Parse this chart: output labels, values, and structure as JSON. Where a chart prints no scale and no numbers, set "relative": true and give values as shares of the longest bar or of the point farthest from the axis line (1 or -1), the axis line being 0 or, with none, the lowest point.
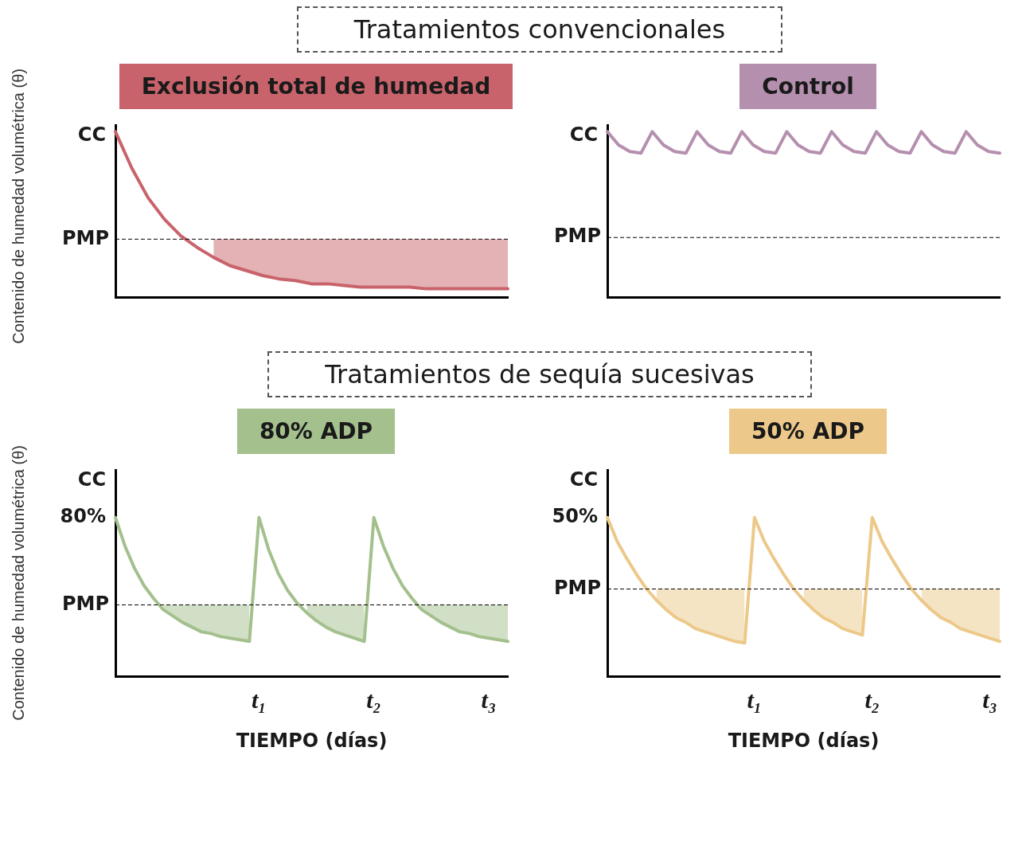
{
  "chart_data": [
    {
      "type": "line",
      "subtitle": "Tratamientos convencionales",
      "title": "Exclusión total de humedad",
      "ylabel": "Contenido de humedad volumétrica (θ)",
      "relative": true,
      "categories": [
        null,
        null,
        null,
        null,
        null,
        null,
        null,
        null,
        null,
        null,
        null,
        null,
        null,
        null,
        null,
        null,
        null,
        null,
        null,
        null,
        null,
        null,
        null,
        null,
        null
      ],
      "series": [
        {
          "color": "#c9636b",
          "values": [
            1.0,
            0.78,
            0.6,
            0.47,
            0.37,
            0.3,
            0.24,
            0.19,
            0.16,
            0.13,
            0.11,
            0.1,
            0.08,
            0.08,
            0.07,
            0.06,
            0.06,
            0.06,
            0.06,
            0.05,
            0.05,
            0.05,
            0.05,
            0.05,
            0.05
          ],
          "lower": [
            null,
            null,
            null,
            null,
            null,
            null,
            0.24,
            0.19,
            0.16,
            0.13,
            0.11,
            0.1,
            0.08,
            0.08,
            0.07,
            0.06,
            0.06,
            0.06,
            0.06,
            0.05,
            0.05,
            0.05,
            0.05,
            0.05,
            0.05
          ],
          "upper": [
            null,
            null,
            null,
            null,
            null,
            null,
            0.35,
            0.35,
            0.35,
            0.35,
            0.35,
            0.35,
            0.35,
            0.35,
            0.35,
            0.35,
            0.35,
            0.35,
            0.35,
            0.35,
            0.35,
            0.35,
            0.35,
            0.35,
            0.35
          ]
        }
      ],
      "ref_lines": [
        {
          "axis": "y",
          "value": 0.35,
          "label": "PMP",
          "line_style": "dashed"
        }
      ],
      "annotations": [
        "CC"
      ]
    },
    {
      "type": "line",
      "title": "Control",
      "relative": true,
      "categories": [
        null,
        null,
        null,
        null,
        null,
        null,
        null,
        null,
        null,
        null,
        null,
        null,
        null,
        null,
        null,
        null,
        null,
        null,
        null,
        null,
        null,
        null,
        null,
        null,
        null,
        null,
        null,
        null,
        null,
        null,
        null,
        null,
        null,
        null,
        null,
        null
      ],
      "series": [
        {
          "color": "#b58fae",
          "values": [
            1.0,
            0.92,
            0.88,
            0.87,
            1.0,
            0.92,
            0.88,
            0.87,
            1.0,
            0.92,
            0.88,
            0.87,
            1.0,
            0.92,
            0.88,
            0.87,
            1.0,
            0.92,
            0.88,
            0.87,
            1.0,
            0.92,
            0.88,
            0.87,
            1.0,
            0.92,
            0.88,
            0.87,
            1.0,
            0.92,
            0.88,
            0.87,
            1.0,
            0.92,
            0.88,
            0.87
          ]
        }
      ],
      "ref_lines": [
        {
          "axis": "y",
          "value": 0.36,
          "label": "PMP",
          "line_style": "dashed"
        }
      ],
      "annotations": [
        "CC"
      ]
    },
    {
      "type": "line",
      "subtitle": "Tratamientos de sequía sucesivas",
      "title": "80% ADP",
      "ylabel": "Contenido de humedad volumétrica (θ)",
      "xlabel": "TIEMPO (días)",
      "relative": true,
      "categories": [
        null,
        null,
        null,
        null,
        null,
        null,
        null,
        null,
        null,
        null,
        null,
        null,
        null,
        null,
        null,
        "t₁",
        null,
        null,
        null,
        null,
        null,
        null,
        null,
        null,
        null,
        null,
        null,
        "t₂",
        null,
        null,
        null,
        null,
        null,
        null,
        null,
        null,
        null,
        null,
        null,
        "t₃",
        null,
        null
      ],
      "series": [
        {
          "color": "#a3c08d",
          "values": [
            1.0,
            0.82,
            0.68,
            0.57,
            0.49,
            0.42,
            0.38,
            0.34,
            0.31,
            0.28,
            0.27,
            0.25,
            0.24,
            0.23,
            0.22,
            1.0,
            0.8,
            0.65,
            0.54,
            0.46,
            0.4,
            0.35,
            0.31,
            0.28,
            0.26,
            0.24,
            0.22,
            1.0,
            0.82,
            0.68,
            0.57,
            0.49,
            0.42,
            0.38,
            0.34,
            0.31,
            0.28,
            0.27,
            0.25,
            0.24,
            0.23,
            0.22
          ],
          "lower": [
            null,
            null,
            null,
            null,
            null,
            0.42,
            0.38,
            0.34,
            0.31,
            0.28,
            0.27,
            0.25,
            0.24,
            0.23,
            0.22,
            null,
            null,
            null,
            null,
            null,
            0.4,
            0.35,
            0.31,
            0.28,
            0.26,
            0.24,
            0.22,
            null,
            null,
            null,
            null,
            null,
            0.42,
            0.38,
            0.34,
            0.31,
            0.28,
            0.27,
            0.25,
            0.24,
            0.23,
            0.22
          ],
          "upper": [
            null,
            null,
            null,
            null,
            null,
            0.45,
            0.45,
            0.45,
            0.45,
            0.45,
            0.45,
            0.45,
            0.45,
            0.45,
            0.45,
            null,
            null,
            null,
            null,
            null,
            0.45,
            0.45,
            0.45,
            0.45,
            0.45,
            0.45,
            0.45,
            null,
            null,
            null,
            null,
            null,
            0.45,
            0.45,
            0.45,
            0.45,
            0.45,
            0.45,
            0.45,
            0.45,
            0.45,
            0.45
          ]
        }
      ],
      "ref_lines": [
        {
          "axis": "y",
          "value": 0.45,
          "label": "PMP",
          "line_style": "dashed"
        }
      ],
      "annotations": [
        "CC",
        "80%"
      ]
    },
    {
      "type": "line",
      "title": "50% ADP",
      "xlabel": "TIEMPO (días)",
      "relative": true,
      "categories": [
        null,
        null,
        null,
        null,
        null,
        null,
        null,
        null,
        null,
        null,
        null,
        null,
        null,
        null,
        null,
        "t₁",
        null,
        null,
        null,
        null,
        null,
        null,
        null,
        null,
        null,
        null,
        null,
        "t₂",
        null,
        null,
        null,
        null,
        null,
        null,
        null,
        null,
        null,
        null,
        null,
        "t₃",
        null
      ],
      "series": [
        {
          "color": "#ecc98a",
          "values": [
            1.0,
            0.85,
            0.74,
            0.64,
            0.55,
            0.48,
            0.42,
            0.37,
            0.34,
            0.3,
            0.28,
            0.26,
            0.24,
            0.22,
            0.21,
            1.0,
            0.85,
            0.74,
            0.64,
            0.55,
            0.48,
            0.42,
            0.37,
            0.34,
            0.3,
            0.28,
            0.26,
            1.0,
            0.85,
            0.74,
            0.64,
            0.55,
            0.48,
            0.42,
            0.37,
            0.34,
            0.3,
            0.28,
            0.26,
            0.24,
            0.22
          ],
          "lower": [
            null,
            null,
            null,
            null,
            null,
            0.48,
            0.42,
            0.37,
            0.34,
            0.3,
            0.28,
            0.26,
            0.24,
            0.22,
            0.21,
            null,
            null,
            null,
            null,
            null,
            0.48,
            0.42,
            0.37,
            0.34,
            0.3,
            0.28,
            0.26,
            null,
            null,
            null,
            null,
            null,
            0.48,
            0.42,
            0.37,
            0.34,
            0.3,
            0.28,
            0.26,
            0.24,
            0.22
          ],
          "upper": [
            null,
            null,
            null,
            null,
            null,
            0.55,
            0.55,
            0.55,
            0.55,
            0.55,
            0.55,
            0.55,
            0.55,
            0.55,
            0.55,
            null,
            null,
            null,
            null,
            null,
            0.55,
            0.55,
            0.55,
            0.55,
            0.55,
            0.55,
            0.55,
            null,
            null,
            null,
            null,
            null,
            0.55,
            0.55,
            0.55,
            0.55,
            0.55,
            0.55,
            0.55,
            0.55,
            0.55
          ]
        }
      ],
      "ref_lines": [
        {
          "axis": "y",
          "value": 0.55,
          "label": "PMP",
          "line_style": "dashed"
        }
      ],
      "annotations": [
        "CC",
        "50%"
      ]
    }
  ]
}
